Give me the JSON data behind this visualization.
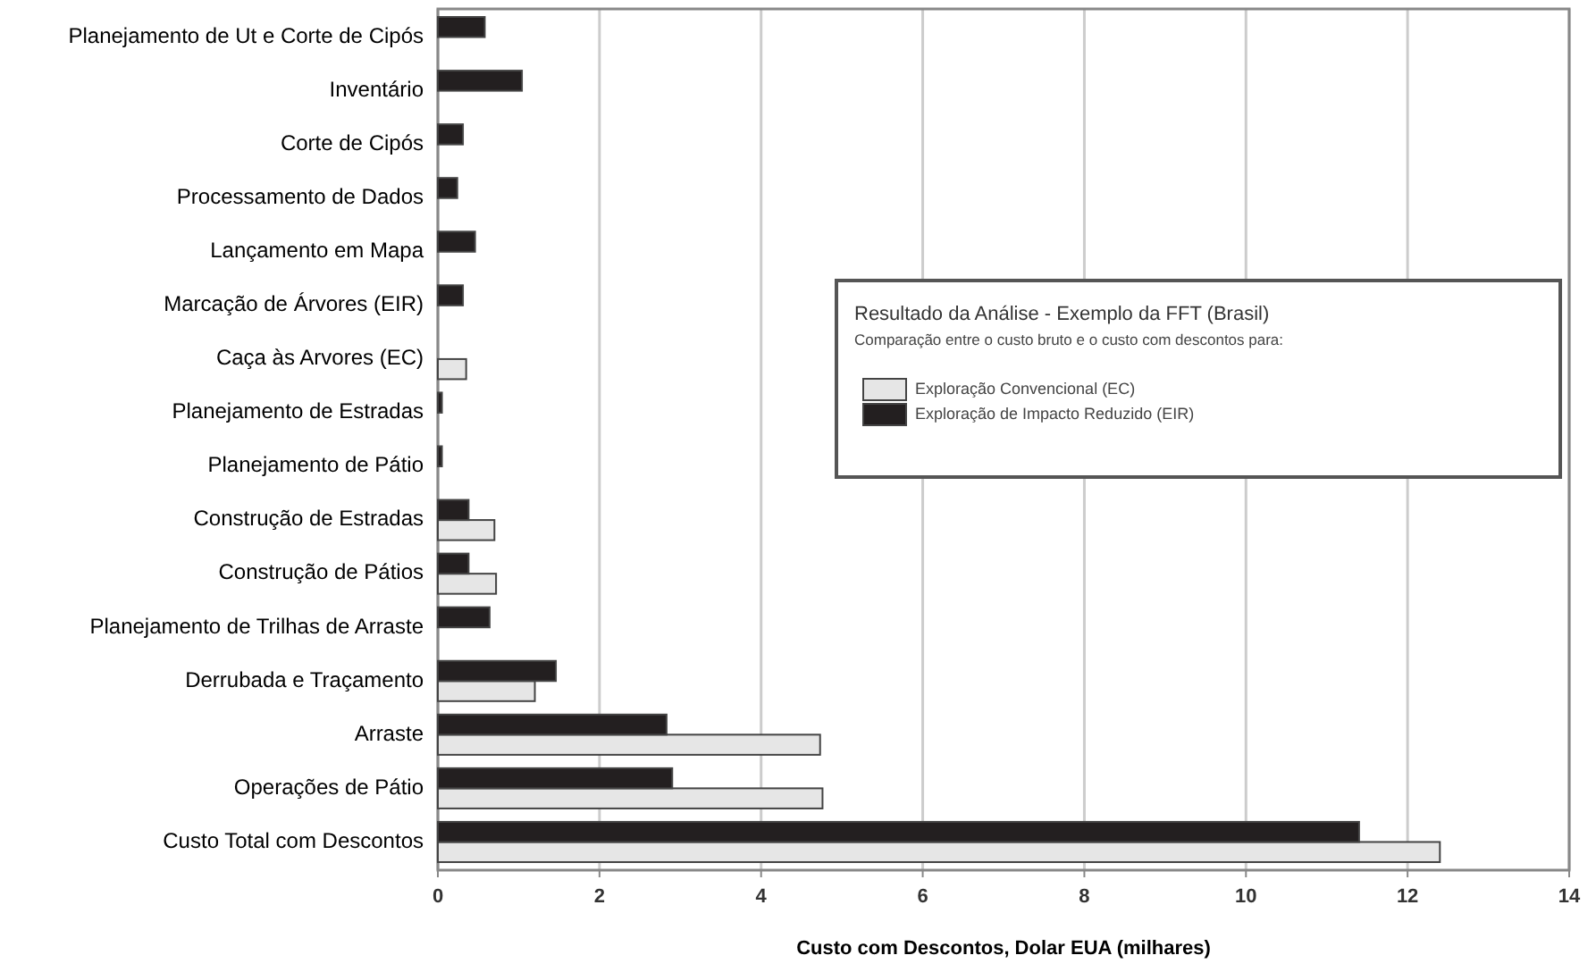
{
  "chart_data": {
    "type": "bar",
    "orientation": "horizontal",
    "xlabel": "Custo com Descontos, Dolar EUA (milhares)",
    "legend_title": "Resultado da Análise - Exemplo da FFT (Brasil)",
    "annotations": [
      "Comparação entre o custo bruto e o custo com descontos para:"
    ],
    "categories": [
      "Planejamento de Ut e Corte de Cipós",
      "Inventário",
      "Corte de Cipós",
      "Processamento de Dados",
      "Lançamento em Mapa",
      "Marcação de Árvores (EIR)",
      "Caça às Arvores (EC)",
      "Planejamento de Estradas",
      "Planejamento de Pátio",
      "Construção de Estradas",
      "Construção de Pátios",
      "Planejamento de Trilhas de Arraste",
      "Derrubada e Traçamento",
      "Arraste",
      "Operações de Pátio",
      "Custo Total com Descontos"
    ],
    "series": [
      {
        "name": "Exploração Convencional (EC)",
        "color": "#e6e6e6",
        "values": [
          null,
          null,
          null,
          null,
          null,
          null,
          0.35,
          null,
          null,
          0.7,
          0.72,
          null,
          1.2,
          4.73,
          4.76,
          12.4
        ]
      },
      {
        "name": "Exploração de Impacto Reduzido (EIR)",
        "color": "#231f20",
        "values": [
          0.58,
          1.04,
          0.31,
          0.24,
          0.46,
          0.31,
          null,
          0.05,
          0.05,
          0.38,
          0.38,
          0.64,
          1.46,
          2.83,
          2.9,
          11.4
        ]
      }
    ],
    "xlim": [
      0,
      14
    ],
    "xticks": [
      0,
      2,
      4,
      6,
      8,
      10,
      12,
      14
    ],
    "grid": "x",
    "legend": "right"
  }
}
